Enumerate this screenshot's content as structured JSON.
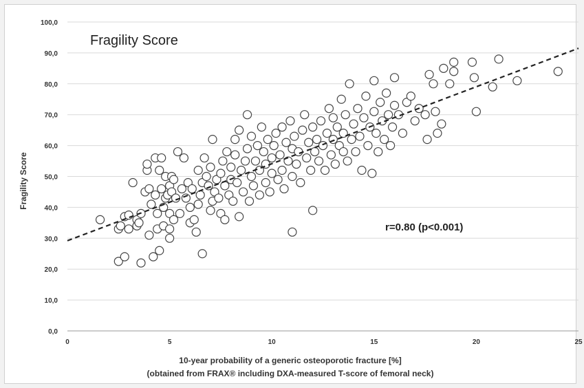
{
  "chart_data": {
    "type": "scatter",
    "title": "Fragility Score",
    "xlabel": "10-year probability of a generic osteoporotic fracture [%]",
    "xlabel_line2": "(obtained from FRAX® including DXA-measured T-score of femoral neck)",
    "ylabel": "Fragility Score",
    "xlim": [
      0,
      25
    ],
    "ylim": [
      0,
      100
    ],
    "x_ticks": [
      "0",
      "5",
      "10",
      "15",
      "20",
      "25"
    ],
    "y_ticks": [
      "0,0",
      "10,0",
      "20,0",
      "30,0",
      "40,0",
      "50,0",
      "60,0",
      "70,0",
      "80,0",
      "90,0",
      "100,0"
    ],
    "grid": "horizontal",
    "annotation": "r=0.80 (p<0.001)",
    "regression_line": {
      "x": [
        0,
        25
      ],
      "y": [
        29.2,
        91.5
      ],
      "style": "dashed"
    },
    "marker": "open-circle",
    "marker_color": "#444444",
    "points": [
      [
        1.6,
        36
      ],
      [
        2.5,
        22.5
      ],
      [
        2.5,
        33
      ],
      [
        2.6,
        34
      ],
      [
        2.8,
        37
      ],
      [
        2.8,
        24
      ],
      [
        3,
        33
      ],
      [
        3,
        37.5
      ],
      [
        3.2,
        48
      ],
      [
        3.4,
        34
      ],
      [
        3.4,
        36
      ],
      [
        3.5,
        35
      ],
      [
        3.6,
        22
      ],
      [
        3.6,
        38
      ],
      [
        3.8,
        45
      ],
      [
        3.9,
        52
      ],
      [
        3.9,
        54
      ],
      [
        4,
        31
      ],
      [
        4,
        46
      ],
      [
        4.1,
        41
      ],
      [
        4.2,
        24
      ],
      [
        4.3,
        56
      ],
      [
        4.3,
        44
      ],
      [
        4.4,
        33
      ],
      [
        4.4,
        38
      ],
      [
        4.5,
        26
      ],
      [
        4.5,
        52
      ],
      [
        4.6,
        46
      ],
      [
        4.6,
        56
      ],
      [
        4.7,
        34
      ],
      [
        4.7,
        40
      ],
      [
        4.8,
        50
      ],
      [
        4.8,
        43
      ],
      [
        4.9,
        44
      ],
      [
        5,
        30
      ],
      [
        5,
        33
      ],
      [
        5,
        38
      ],
      [
        5,
        47
      ],
      [
        5.1,
        50
      ],
      [
        5.1,
        45
      ],
      [
        5.2,
        36
      ],
      [
        5.2,
        49
      ],
      [
        5.3,
        43
      ],
      [
        5.4,
        58
      ],
      [
        5.5,
        38
      ],
      [
        5.6,
        46
      ],
      [
        5.7,
        56
      ],
      [
        5.8,
        43
      ],
      [
        5.9,
        48
      ],
      [
        6,
        35
      ],
      [
        6,
        40
      ],
      [
        6.1,
        46
      ],
      [
        6.2,
        36
      ],
      [
        6.3,
        32
      ],
      [
        6.4,
        41
      ],
      [
        6.4,
        52
      ],
      [
        6.5,
        44
      ],
      [
        6.6,
        25
      ],
      [
        6.6,
        48
      ],
      [
        6.7,
        56
      ],
      [
        6.8,
        50
      ],
      [
        6.9,
        47
      ],
      [
        7,
        39
      ],
      [
        7,
        53
      ],
      [
        7.1,
        42
      ],
      [
        7.1,
        62
      ],
      [
        7.2,
        45
      ],
      [
        7.3,
        49
      ],
      [
        7.4,
        43
      ],
      [
        7.5,
        38
      ],
      [
        7.5,
        51
      ],
      [
        7.6,
        55
      ],
      [
        7.7,
        47
      ],
      [
        7.7,
        36
      ],
      [
        7.8,
        58
      ],
      [
        7.9,
        44
      ],
      [
        8,
        49
      ],
      [
        8,
        53
      ],
      [
        8.1,
        42
      ],
      [
        8.2,
        57
      ],
      [
        8.2,
        62
      ],
      [
        8.3,
        48
      ],
      [
        8.4,
        37
      ],
      [
        8.4,
        65
      ],
      [
        8.5,
        52
      ],
      [
        8.6,
        45
      ],
      [
        8.7,
        55
      ],
      [
        8.8,
        59
      ],
      [
        8.8,
        70
      ],
      [
        8.9,
        42
      ],
      [
        9,
        50
      ],
      [
        9,
        63
      ],
      [
        9.1,
        47
      ],
      [
        9.2,
        55
      ],
      [
        9.3,
        60
      ],
      [
        9.4,
        44
      ],
      [
        9.4,
        52
      ],
      [
        9.5,
        66
      ],
      [
        9.6,
        58
      ],
      [
        9.7,
        48
      ],
      [
        9.7,
        54
      ],
      [
        9.8,
        62
      ],
      [
        9.9,
        45
      ],
      [
        10,
        51
      ],
      [
        10,
        56
      ],
      [
        10.1,
        60
      ],
      [
        10.2,
        64
      ],
      [
        10.3,
        49
      ],
      [
        10.4,
        57
      ],
      [
        10.5,
        52
      ],
      [
        10.5,
        66
      ],
      [
        10.6,
        46
      ],
      [
        10.7,
        61
      ],
      [
        10.8,
        55
      ],
      [
        10.9,
        68
      ],
      [
        11,
        32
      ],
      [
        11,
        50
      ],
      [
        11,
        59
      ],
      [
        11.1,
        63
      ],
      [
        11.2,
        54
      ],
      [
        11.3,
        58
      ],
      [
        11.4,
        48
      ],
      [
        11.5,
        65
      ],
      [
        11.6,
        70
      ],
      [
        11.7,
        56
      ],
      [
        11.8,
        61
      ],
      [
        11.9,
        52
      ],
      [
        12,
        39
      ],
      [
        12,
        66
      ],
      [
        12.1,
        58
      ],
      [
        12.2,
        62
      ],
      [
        12.3,
        55
      ],
      [
        12.4,
        68
      ],
      [
        12.5,
        60
      ],
      [
        12.6,
        52
      ],
      [
        12.7,
        64
      ],
      [
        12.8,
        72
      ],
      [
        12.9,
        57
      ],
      [
        13,
        62
      ],
      [
        13,
        69
      ],
      [
        13.1,
        54
      ],
      [
        13.2,
        66
      ],
      [
        13.3,
        60
      ],
      [
        13.4,
        75
      ],
      [
        13.5,
        58
      ],
      [
        13.5,
        64
      ],
      [
        13.6,
        70
      ],
      [
        13.7,
        55
      ],
      [
        13.8,
        80
      ],
      [
        13.9,
        62
      ],
      [
        14,
        67
      ],
      [
        14.1,
        58
      ],
      [
        14.2,
        72
      ],
      [
        14.3,
        63
      ],
      [
        14.4,
        52
      ],
      [
        14.5,
        69
      ],
      [
        14.6,
        76
      ],
      [
        14.7,
        60
      ],
      [
        14.8,
        66
      ],
      [
        14.9,
        51
      ],
      [
        15,
        71
      ],
      [
        15,
        81
      ],
      [
        15.1,
        64
      ],
      [
        15.2,
        58
      ],
      [
        15.3,
        74
      ],
      [
        15.4,
        68
      ],
      [
        15.5,
        62
      ],
      [
        15.6,
        77
      ],
      [
        15.7,
        70
      ],
      [
        15.8,
        60
      ],
      [
        15.9,
        66
      ],
      [
        16,
        73
      ],
      [
        16,
        82
      ],
      [
        16.2,
        70
      ],
      [
        16.4,
        64
      ],
      [
        16.6,
        74
      ],
      [
        16.8,
        76
      ],
      [
        17,
        68
      ],
      [
        17.2,
        72
      ],
      [
        17.5,
        70
      ],
      [
        17.6,
        62
      ],
      [
        17.7,
        83
      ],
      [
        17.9,
        80
      ],
      [
        18,
        71
      ],
      [
        18.1,
        64
      ],
      [
        18.3,
        67
      ],
      [
        18.4,
        85
      ],
      [
        18.7,
        80
      ],
      [
        18.9,
        87
      ],
      [
        18.9,
        84
      ],
      [
        19.8,
        87
      ],
      [
        19.9,
        82
      ],
      [
        20,
        71
      ],
      [
        20.8,
        79
      ],
      [
        21.1,
        88
      ],
      [
        22,
        81
      ],
      [
        24,
        84
      ]
    ]
  }
}
